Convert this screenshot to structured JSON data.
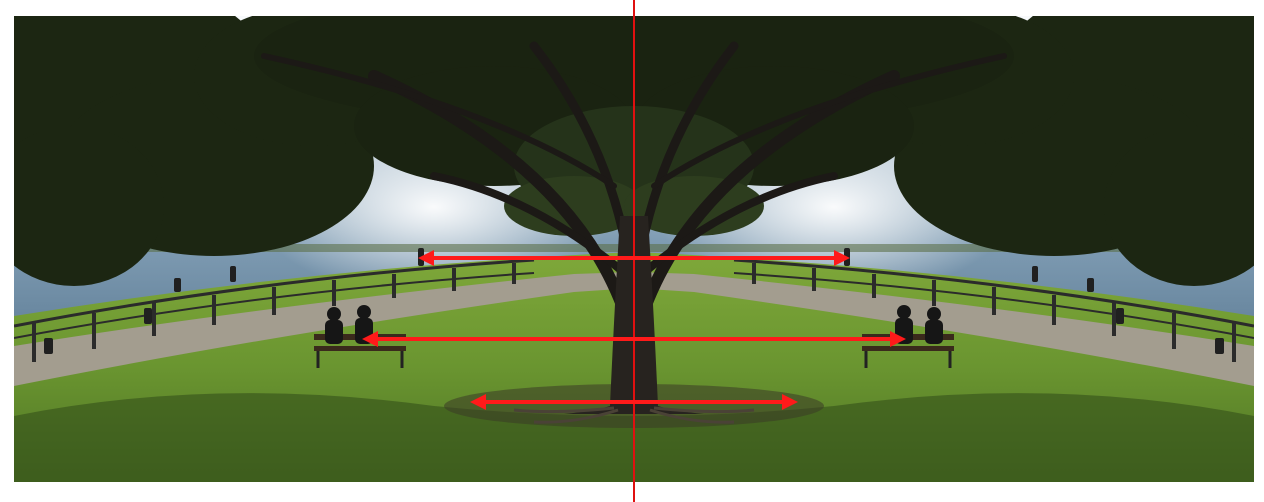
{
  "image": {
    "subject": "symmetry-mirrored-park-tree",
    "colors": {
      "sky": "#eef3f7",
      "sea": "#6f8fa8",
      "sea_glitter": "#e9eef2",
      "grass": "#6f9a34",
      "grass_shadow": "#2f3f17",
      "path": "#9a9486",
      "foliage": "#1f2a14",
      "trunk": "#2a2622",
      "bench": "#3a2a1c"
    }
  },
  "annotations": {
    "axis_color": "#e01010",
    "arrow_color": "#ff1a1a",
    "axis_label": "",
    "arrows": [
      {
        "name": "upper-arrow",
        "label": ""
      },
      {
        "name": "middle-arrow",
        "label": ""
      },
      {
        "name": "lower-arrow",
        "label": ""
      }
    ]
  }
}
